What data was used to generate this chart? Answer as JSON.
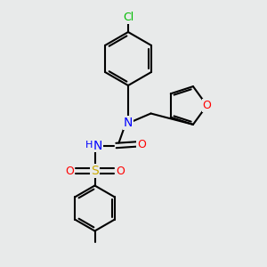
{
  "background_color": "#e8eaea",
  "bond_color": "#000000",
  "bond_width": 1.5,
  "atom_colors": {
    "Cl": "#00bb00",
    "N": "#0000ff",
    "O": "#ff0000",
    "S": "#ccaa00",
    "H": "#0000ff"
  },
  "font_size": 8,
  "fig_width": 3.0,
  "fig_height": 3.0,
  "dpi": 100,
  "xlim": [
    0,
    10
  ],
  "ylim": [
    0,
    10
  ]
}
